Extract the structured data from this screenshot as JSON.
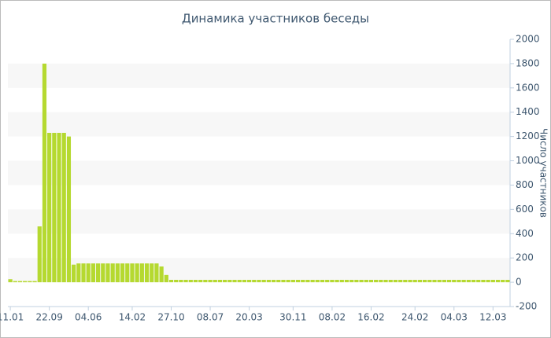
{
  "chart_data": {
    "type": "bar",
    "title": "Динамика участников беседы",
    "y_label": "Число участников",
    "categories": [
      "11.01",
      null,
      null,
      null,
      null,
      null,
      null,
      null,
      "22.09",
      null,
      null,
      null,
      null,
      null,
      null,
      null,
      "04.06",
      null,
      null,
      null,
      null,
      null,
      null,
      null,
      null,
      "14.02",
      null,
      null,
      null,
      null,
      null,
      null,
      null,
      "27.10",
      null,
      null,
      null,
      null,
      null,
      null,
      null,
      "08.07",
      null,
      null,
      null,
      null,
      null,
      null,
      null,
      "20.03",
      null,
      null,
      null,
      null,
      null,
      null,
      null,
      null,
      "30.11",
      null,
      null,
      null,
      null,
      null,
      null,
      null,
      "08.02",
      null,
      null,
      null,
      null,
      null,
      null,
      null,
      "16.02",
      null,
      null,
      null,
      null,
      null,
      null,
      null,
      null,
      "24.02",
      null,
      null,
      null,
      null,
      null,
      null,
      null,
      "04.03",
      null,
      null,
      null,
      null,
      null,
      null,
      null,
      "12.03",
      null,
      null,
      null
    ],
    "values": [
      25,
      10,
      10,
      10,
      10,
      10,
      460,
      1800,
      1230,
      1230,
      1230,
      1230,
      1200,
      145,
      155,
      155,
      155,
      155,
      155,
      155,
      155,
      155,
      155,
      155,
      155,
      155,
      155,
      155,
      155,
      155,
      155,
      130,
      60,
      20,
      20,
      20,
      20,
      20,
      20,
      20,
      20,
      20,
      20,
      20,
      20,
      20,
      20,
      20,
      20,
      20,
      20,
      20,
      20,
      20,
      20,
      20,
      20,
      20,
      20,
      20,
      20,
      20,
      20,
      20,
      20,
      20,
      20,
      20,
      20,
      20,
      20,
      20,
      20,
      20,
      20,
      20,
      20,
      20,
      20,
      20,
      20,
      20,
      20,
      20,
      20,
      20,
      20,
      20,
      20,
      20,
      20,
      20,
      20,
      20,
      20,
      20,
      20,
      20,
      20,
      20,
      20,
      20,
      20
    ],
    "color": "#b5d930",
    "ylim": [
      -200,
      2000
    ],
    "yticks": [
      -200,
      0,
      200,
      400,
      600,
      800,
      1000,
      1200,
      1400,
      1600,
      1800,
      2000
    ],
    "grid": "bands",
    "y_axis_side": "right"
  }
}
